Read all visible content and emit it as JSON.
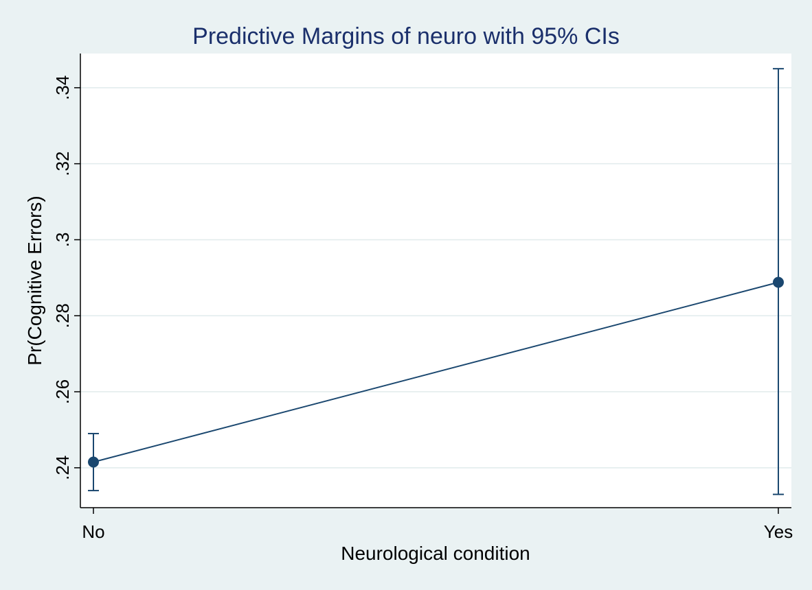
{
  "chart_data": {
    "type": "line",
    "title": "Predictive Margins of neuro with 95% CIs",
    "xlabel": "Neurological condition",
    "ylabel": "Pr(Cognitive Errors)",
    "categories": [
      "No",
      "Yes"
    ],
    "series": [
      {
        "values": [
          0.2415,
          0.2888
        ],
        "ci_lower": [
          0.234,
          0.233
        ],
        "ci_upper": [
          0.249,
          0.345
        ]
      }
    ],
    "ylim": [
      0.2295,
      0.349
    ],
    "yticks": [
      0.24,
      0.26,
      0.28,
      0.3,
      0.32,
      0.34
    ],
    "ytick_labels": [
      ".24",
      ".26",
      ".28",
      ".3",
      ".32",
      ".34"
    ],
    "grid": true,
    "legend": "none",
    "colors": {
      "background": "#eaf2f3",
      "plot_area": "#ffffff",
      "series": "#1a476f",
      "grid": "#e1ebec",
      "title": "#1a2f6b"
    }
  }
}
